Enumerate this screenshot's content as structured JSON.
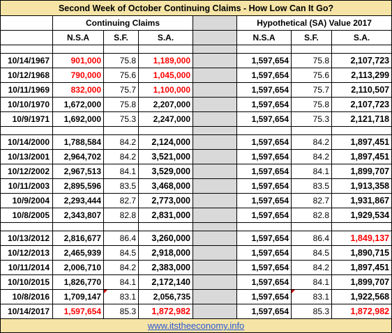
{
  "title": "Second Week of October Continuing Claims - How Low Can It Go?",
  "group_left": "Continuing Claims",
  "group_right": "Hypothetical (SA) Value 2017",
  "col_headers": {
    "nsa": "N.S.A",
    "sf": "S.F.",
    "sa": "S.A.",
    "h_nsa": "N.S.A",
    "h_sf": "S.F.",
    "h_sa": "S.A."
  },
  "colors": {
    "header_fill": "#f5e4a6",
    "gap_column": "#d9d9d9",
    "highlight": "#ff0000",
    "link": "#2b58d6"
  },
  "groups": [
    {
      "rows": [
        {
          "date": "10/14/1967",
          "nsa": "901,000",
          "sf": "75.8",
          "sa": "1,189,000",
          "h_nsa": "1,597,654",
          "h_sf": "75.8",
          "h_sa": "2,107,723",
          "nsa_red": true,
          "sa_red": true
        },
        {
          "date": "10/12/1968",
          "nsa": "790,000",
          "sf": "75.6",
          "sa": "1,045,000",
          "h_nsa": "1,597,654",
          "h_sf": "75.6",
          "h_sa": "2,113,299",
          "nsa_red": true,
          "sa_red": true
        },
        {
          "date": "10/11/1969",
          "nsa": "832,000",
          "sf": "75.7",
          "sa": "1,100,000",
          "h_nsa": "1,597,654",
          "h_sf": "75.7",
          "h_sa": "2,110,507",
          "nsa_red": true,
          "sa_red": true
        },
        {
          "date": "10/10/1970",
          "nsa": "1,672,000",
          "sf": "75.8",
          "sa": "2,207,000",
          "h_nsa": "1,597,654",
          "h_sf": "75.8",
          "h_sa": "2,107,723"
        },
        {
          "date": "10/9/1971",
          "nsa": "1,692,000",
          "sf": "75.3",
          "sa": "2,247,000",
          "h_nsa": "1,597,654",
          "h_sf": "75.3",
          "h_sa": "2,121,718"
        }
      ]
    },
    {
      "rows": [
        {
          "date": "10/14/2000",
          "nsa": "1,788,584",
          "sf": "84.2",
          "sa": "2,124,000",
          "h_nsa": "1,597,654",
          "h_sf": "84.2",
          "h_sa": "1,897,451",
          "sa_big": true
        },
        {
          "date": "10/13/2001",
          "nsa": "2,964,702",
          "sf": "84.2",
          "sa": "3,521,000",
          "h_nsa": "1,597,654",
          "h_sf": "84.2",
          "h_sa": "1,897,451",
          "sa_big": true
        },
        {
          "date": "10/12/2002",
          "nsa": "2,967,513",
          "sf": "84.1",
          "sa": "3,529,000",
          "h_nsa": "1,597,654",
          "h_sf": "84.1",
          "h_sa": "1,899,707",
          "sa_big": true
        },
        {
          "date": "10/11/2003",
          "nsa": "2,895,596",
          "sf": "83.5",
          "sa": "3,468,000",
          "h_nsa": "1,597,654",
          "h_sf": "83.5",
          "h_sa": "1,913,358",
          "sa_big": true
        },
        {
          "date": "10/9/2004",
          "nsa": "2,293,444",
          "sf": "82.7",
          "sa": "2,773,000",
          "h_nsa": "1,597,654",
          "h_sf": "82.7",
          "h_sa": "1,931,867",
          "sa_big": true
        },
        {
          "date": "10/8/2005",
          "nsa": "2,343,807",
          "sf": "82.8",
          "sa": "2,831,000",
          "h_nsa": "1,597,654",
          "h_sf": "82.8",
          "h_sa": "1,929,534",
          "sa_big": true
        }
      ]
    },
    {
      "rows": [
        {
          "date": "10/13/2012",
          "nsa": "2,816,677",
          "sf": "86.4",
          "sa": "3,260,000",
          "h_nsa": "1,597,654",
          "h_sf": "86.4",
          "h_sa": "1,849,137",
          "sa_big": true,
          "h_sa_red": true
        },
        {
          "date": "10/12/2013",
          "nsa": "2,465,939",
          "sf": "84.5",
          "sa": "2,918,000",
          "h_nsa": "1,597,654",
          "h_sf": "84.5",
          "h_sa": "1,890,715",
          "sa_big": true
        },
        {
          "date": "10/11/2014",
          "nsa": "2,006,710",
          "sf": "84.2",
          "sa": "2,383,000",
          "h_nsa": "1,597,654",
          "h_sf": "84.2",
          "h_sa": "1,897,451",
          "sa_big": true
        },
        {
          "date": "10/10/2015",
          "nsa": "1,826,770",
          "sf": "84.1",
          "sa": "2,172,140",
          "h_nsa": "1,597,654",
          "h_sf": "84.1",
          "h_sa": "1,899,707",
          "sa_big": true
        },
        {
          "date": "10/8/2016",
          "nsa": "1,709,147",
          "sf": "83.1",
          "sa": "2,056,735",
          "h_nsa": "1,597,654",
          "h_sf": "83.1",
          "h_sa": "1,922,568",
          "sf_comment": true,
          "h_sf_comment": true
        },
        {
          "date": "10/14/2017",
          "nsa": "1,597,654",
          "sf": "85.3",
          "sa": "1,872,982",
          "h_nsa": "1,597,654",
          "h_sf": "85.3",
          "h_sa": "1,872,982",
          "nsa_red": true,
          "sa_red": true,
          "h_sa_red": true,
          "sa_big": true
        }
      ]
    }
  ],
  "footer": {
    "link": "www.itstheeconomy.info"
  }
}
